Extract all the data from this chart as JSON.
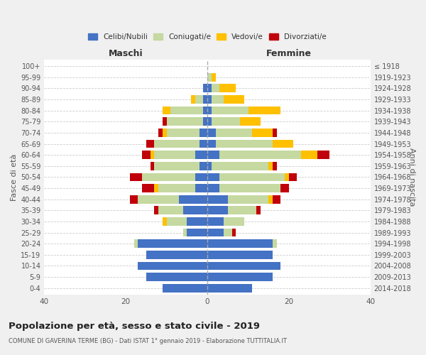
{
  "age_groups": [
    "100+",
    "95-99",
    "90-94",
    "85-89",
    "80-84",
    "75-79",
    "70-74",
    "65-69",
    "60-64",
    "55-59",
    "50-54",
    "45-49",
    "40-44",
    "35-39",
    "30-34",
    "25-29",
    "20-24",
    "15-19",
    "10-14",
    "5-9",
    "0-4"
  ],
  "birth_years": [
    "≤ 1918",
    "1919-1923",
    "1924-1928",
    "1929-1933",
    "1934-1938",
    "1939-1943",
    "1944-1948",
    "1949-1953",
    "1954-1958",
    "1959-1963",
    "1964-1968",
    "1969-1973",
    "1974-1978",
    "1979-1983",
    "1984-1988",
    "1989-1993",
    "1994-1998",
    "1999-2003",
    "2004-2008",
    "2009-2013",
    "2014-2018"
  ],
  "colors": {
    "celibi": "#4472c4",
    "coniugati": "#c5d9a0",
    "vedovi": "#ffc000",
    "divorziati": "#c0000a"
  },
  "males": {
    "celibi": [
      0,
      0,
      1,
      1,
      1,
      1,
      2,
      2,
      3,
      2,
      3,
      3,
      7,
      6,
      5,
      5,
      17,
      15,
      17,
      15,
      11
    ],
    "coniugati": [
      0,
      0,
      0,
      2,
      8,
      9,
      8,
      11,
      10,
      11,
      13,
      9,
      10,
      6,
      5,
      1,
      1,
      0,
      0,
      0,
      0
    ],
    "vedovi": [
      0,
      0,
      0,
      1,
      2,
      0,
      1,
      0,
      1,
      0,
      0,
      1,
      0,
      0,
      1,
      0,
      0,
      0,
      0,
      0,
      0
    ],
    "divorziati": [
      0,
      0,
      0,
      0,
      0,
      1,
      1,
      2,
      2,
      1,
      3,
      3,
      2,
      1,
      0,
      0,
      0,
      0,
      0,
      0,
      0
    ]
  },
  "females": {
    "celibi": [
      0,
      0,
      1,
      1,
      1,
      1,
      2,
      2,
      3,
      1,
      3,
      3,
      5,
      5,
      4,
      4,
      16,
      16,
      18,
      16,
      11
    ],
    "coniugati": [
      0,
      1,
      2,
      3,
      9,
      7,
      9,
      14,
      20,
      14,
      16,
      15,
      10,
      7,
      5,
      2,
      1,
      0,
      0,
      0,
      0
    ],
    "vedovi": [
      0,
      1,
      4,
      5,
      8,
      5,
      5,
      5,
      4,
      1,
      1,
      0,
      1,
      0,
      0,
      0,
      0,
      0,
      0,
      0,
      0
    ],
    "divorziati": [
      0,
      0,
      0,
      0,
      0,
      0,
      1,
      0,
      3,
      1,
      2,
      2,
      2,
      1,
      0,
      1,
      0,
      0,
      0,
      0,
      0
    ]
  },
  "xlim": 40,
  "title": "Popolazione per età, sesso e stato civile - 2019",
  "subtitle": "COMUNE DI GAVERINA TERME (BG) - Dati ISTAT 1° gennaio 2019 - Elaborazione TUTTITALIA.IT",
  "ylabel_left": "Fasce di età",
  "ylabel_right": "Anni di nascita",
  "xlabel_left": "Maschi",
  "xlabel_right": "Femmine",
  "bg_color": "#f0f0f0",
  "plot_bg_color": "#ffffff"
}
